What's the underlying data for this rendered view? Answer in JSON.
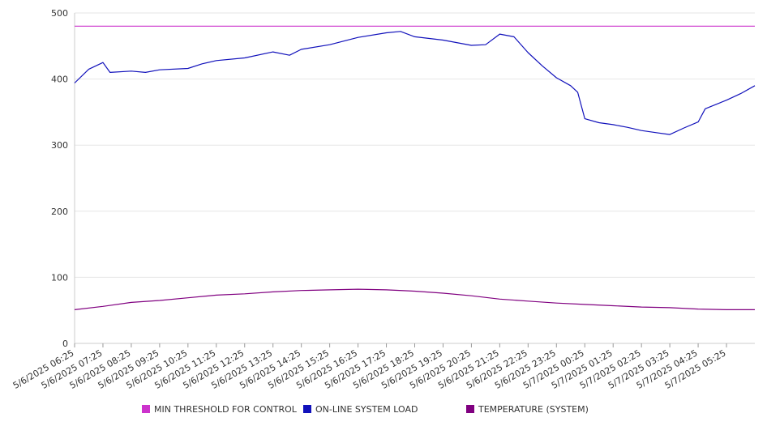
{
  "chart_data": {
    "type": "line",
    "title": "",
    "xlabel": "",
    "ylabel": "",
    "ylim": [
      0,
      500
    ],
    "y_ticks": [
      "0",
      "100",
      "200",
      "300",
      "400",
      "500"
    ],
    "x_tick_labels": [
      "5/6/2025 06:25",
      "5/6/2025 07:25",
      "5/6/2025 08:25",
      "5/6/2025 09:25",
      "5/6/2025 10:25",
      "5/6/2025 11:25",
      "5/6/2025 12:25",
      "5/6/2025 13:25",
      "5/6/2025 14:25",
      "5/6/2025 15:25",
      "5/6/2025 16:25",
      "5/6/2025 17:25",
      "5/6/2025 18:25",
      "5/6/2025 19:25",
      "5/6/2025 20:25",
      "5/6/2025 21:25",
      "5/6/2025 22:25",
      "5/6/2025 23:25",
      "5/7/2025 00:25",
      "5/7/2025 01:25",
      "5/7/2025 02:25",
      "5/7/2025 03:25",
      "5/7/2025 04:25",
      "5/7/2025 05:25"
    ],
    "grid": true,
    "legend_position": "bottom",
    "series": [
      {
        "name": "MIN THRESHOLD FOR CONTROL",
        "color": "#cc33cc",
        "points": [
          [
            "5/6/2025 06:25",
            480
          ],
          [
            "5/7/2025 06:25",
            480
          ]
        ]
      },
      {
        "name": "ON-LINE SYSTEM LOAD",
        "color": "#1111bb",
        "points": [
          [
            "5/6/2025 06:25",
            394
          ],
          [
            "5/6/2025 06:55",
            415
          ],
          [
            "5/6/2025 07:25",
            425
          ],
          [
            "5/6/2025 07:40",
            410
          ],
          [
            "5/6/2025 08:25",
            412
          ],
          [
            "5/6/2025 08:55",
            410
          ],
          [
            "5/6/2025 09:25",
            414
          ],
          [
            "5/6/2025 10:25",
            416
          ],
          [
            "5/6/2025 10:55",
            423
          ],
          [
            "5/6/2025 11:25",
            428
          ],
          [
            "5/6/2025 12:25",
            432
          ],
          [
            "5/6/2025 13:25",
            441
          ],
          [
            "5/6/2025 14:00",
            436
          ],
          [
            "5/6/2025 14:25",
            445
          ],
          [
            "5/6/2025 15:25",
            452
          ],
          [
            "5/6/2025 16:25",
            463
          ],
          [
            "5/6/2025 17:25",
            470
          ],
          [
            "5/6/2025 17:55",
            472
          ],
          [
            "5/6/2025 18:25",
            464
          ],
          [
            "5/6/2025 19:25",
            459
          ],
          [
            "5/6/2025 20:25",
            451
          ],
          [
            "5/6/2025 20:55",
            452
          ],
          [
            "5/6/2025 21:25",
            468
          ],
          [
            "5/6/2025 21:55",
            464
          ],
          [
            "5/6/2025 22:25",
            440
          ],
          [
            "5/6/2025 22:55",
            420
          ],
          [
            "5/6/2025 23:25",
            402
          ],
          [
            "5/6/2025 23:55",
            390
          ],
          [
            "5/7/2025 00:10",
            380
          ],
          [
            "5/7/2025 00:25",
            340
          ],
          [
            "5/7/2025 00:55",
            334
          ],
          [
            "5/7/2025 01:25",
            331
          ],
          [
            "5/7/2025 01:55",
            327
          ],
          [
            "5/7/2025 02:25",
            322
          ],
          [
            "5/7/2025 02:55",
            319
          ],
          [
            "5/7/2025 03:25",
            316
          ],
          [
            "5/7/2025 03:55",
            326
          ],
          [
            "5/7/2025 04:25",
            335
          ],
          [
            "5/7/2025 04:40",
            355
          ],
          [
            "5/7/2025 05:25",
            368
          ],
          [
            "5/7/2025 05:55",
            378
          ],
          [
            "5/7/2025 06:25",
            390
          ]
        ]
      },
      {
        "name": "TEMPERATURE (SYSTEM)",
        "color": "#800080",
        "points": [
          [
            "5/6/2025 06:25",
            51
          ],
          [
            "5/6/2025 07:25",
            56
          ],
          [
            "5/6/2025 08:25",
            62
          ],
          [
            "5/6/2025 09:25",
            65
          ],
          [
            "5/6/2025 10:25",
            69
          ],
          [
            "5/6/2025 11:25",
            73
          ],
          [
            "5/6/2025 12:25",
            75
          ],
          [
            "5/6/2025 13:25",
            78
          ],
          [
            "5/6/2025 14:25",
            80
          ],
          [
            "5/6/2025 15:25",
            81
          ],
          [
            "5/6/2025 16:25",
            82
          ],
          [
            "5/6/2025 17:25",
            81
          ],
          [
            "5/6/2025 18:25",
            79
          ],
          [
            "5/6/2025 19:25",
            76
          ],
          [
            "5/6/2025 20:25",
            72
          ],
          [
            "5/6/2025 21:25",
            67
          ],
          [
            "5/6/2025 22:25",
            64
          ],
          [
            "5/6/2025 23:25",
            61
          ],
          [
            "5/7/2025 00:25",
            59
          ],
          [
            "5/7/2025 01:25",
            57
          ],
          [
            "5/7/2025 02:25",
            55
          ],
          [
            "5/7/2025 03:25",
            54
          ],
          [
            "5/7/2025 04:25",
            52
          ],
          [
            "5/7/2025 05:25",
            51
          ],
          [
            "5/7/2025 06:25",
            51
          ]
        ]
      }
    ]
  }
}
